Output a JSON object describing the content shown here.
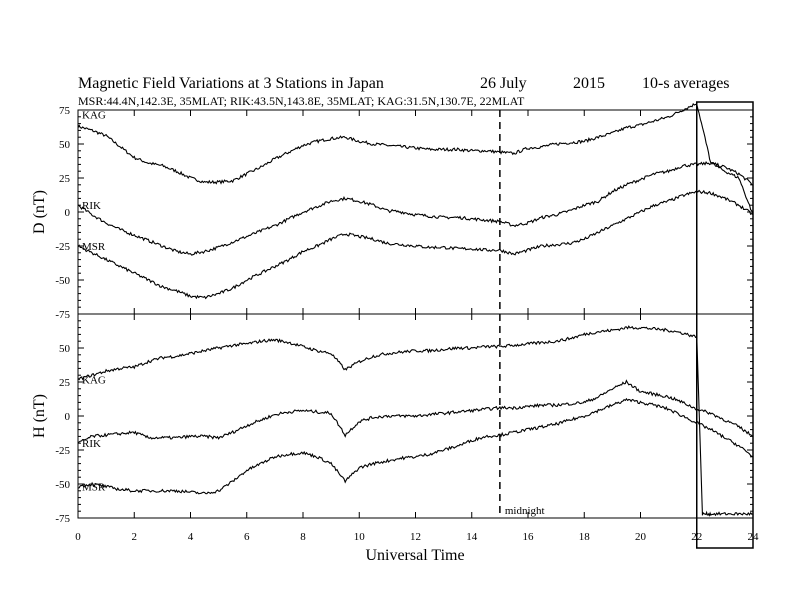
{
  "chart_data": {
    "type": "line",
    "title": "Magnetic Field Variations at 3 Stations in Japan",
    "date": "26 July",
    "year": "2015",
    "averaging": "10-s averages",
    "subtitle": "MSR:44.4N,142.3E, 35MLAT;  RIK:43.5N,143.8E, 35MLAT;  KAG:31.5N,130.7E, 22MLAT",
    "xlabel": "Universal Time",
    "xlim": [
      0,
      24
    ],
    "x_ticks": [
      "0",
      "2",
      "4",
      "6",
      "8",
      "10",
      "12",
      "14",
      "16",
      "18",
      "20",
      "22",
      "24"
    ],
    "annotation": {
      "text": "midnight",
      "x": 15
    },
    "highlight_box": {
      "x_start": 22,
      "x_end": 24
    },
    "panels": [
      {
        "ylabel": "D (nT)",
        "ylim": [
          -75,
          75
        ],
        "y_ticks": [
          "75",
          "50",
          "25",
          "0",
          "-25",
          "-50",
          "-75"
        ],
        "series": [
          {
            "name": "KAG",
            "x": [
              0,
              0.5,
              1,
              1.5,
              2,
              2.5,
              3,
              3.5,
              4,
              4.5,
              5,
              5.5,
              6,
              6.5,
              7,
              7.5,
              8,
              8.5,
              9,
              9.5,
              10,
              10.5,
              11,
              11.5,
              12,
              12.5,
              13,
              13.5,
              14,
              14.5,
              15,
              15.5,
              16,
              16.5,
              17,
              17.5,
              18,
              18.5,
              19,
              19.5,
              20,
              20.5,
              21,
              21.5,
              22,
              22.5,
              23,
              23.5,
              24
            ],
            "values": [
              63,
              60,
              56,
              48,
              40,
              36,
              34,
              30,
              25,
              22,
              22,
              23,
              28,
              33,
              39,
              44,
              49,
              52,
              54,
              55,
              52,
              50,
              49,
              48,
              47,
              46,
              46,
              46,
              45,
              45,
              44,
              43,
              47,
              48,
              50,
              51,
              52,
              55,
              58,
              62,
              64,
              67,
              70,
              75,
              80,
              36,
              33,
              28,
              20
            ]
          },
          {
            "name": "RIK",
            "x": [
              0,
              0.5,
              1,
              1.5,
              2,
              2.5,
              3,
              3.5,
              4,
              4.5,
              5,
              5.5,
              6,
              6.5,
              7,
              7.5,
              8,
              8.5,
              9,
              9.5,
              10,
              10.5,
              11,
              11.5,
              12,
              12.5,
              13,
              13.5,
              14,
              14.5,
              15,
              15.5,
              16,
              16.5,
              17,
              17.5,
              18,
              18.5,
              19,
              19.5,
              20,
              20.5,
              21,
              21.5,
              22,
              22.5,
              23,
              23.5,
              24
            ],
            "values": [
              5,
              -2,
              -8,
              -13,
              -17,
              -21,
              -25,
              -29,
              -31,
              -29,
              -26,
              -22,
              -18,
              -14,
              -10,
              -5,
              0,
              4,
              8,
              10,
              8,
              5,
              1,
              0,
              -2,
              -3,
              -4,
              -4,
              -5,
              -6,
              -7,
              -10,
              -8,
              -4,
              -2,
              1,
              5,
              8,
              15,
              20,
              24,
              28,
              30,
              34,
              35,
              36,
              30,
              25,
              -2
            ]
          },
          {
            "name": "MSR",
            "x": [
              0,
              0.5,
              1,
              1.5,
              2,
              2.5,
              3,
              3.5,
              4,
              4.5,
              5,
              5.5,
              6,
              6.5,
              7,
              7.5,
              8,
              8.5,
              9,
              9.5,
              10,
              10.5,
              11,
              11.5,
              12,
              12.5,
              13,
              13.5,
              14,
              14.5,
              15,
              15.5,
              16,
              16.5,
              17,
              17.5,
              18,
              18.5,
              19,
              19.5,
              20,
              20.5,
              21,
              21.5,
              22,
              22.5,
              23,
              23.5,
              24
            ],
            "values": [
              -25,
              -30,
              -35,
              -40,
              -45,
              -50,
              -55,
              -58,
              -62,
              -63,
              -60,
              -56,
              -50,
              -45,
              -40,
              -35,
              -29,
              -25,
              -20,
              -16,
              -18,
              -20,
              -23,
              -24,
              -25,
              -26,
              -26,
              -27,
              -27,
              -28,
              -28,
              -31,
              -28,
              -25,
              -24,
              -23,
              -20,
              -15,
              -10,
              -5,
              0,
              5,
              8,
              12,
              15,
              14,
              10,
              5,
              -2
            ]
          }
        ]
      },
      {
        "ylabel": "H (nT)",
        "ylim": [
          -75,
          75
        ],
        "y_ticks": [
          "75",
          "50",
          "25",
          "0",
          "-25",
          "-50",
          "-75"
        ],
        "series": [
          {
            "name": "KAG",
            "x": [
              0,
              0.5,
              1,
              1.5,
              2,
              2.5,
              3,
              3.5,
              4,
              4.5,
              5,
              5.5,
              6,
              6.5,
              7,
              7.5,
              8,
              8.5,
              9,
              9.5,
              10,
              10.5,
              11,
              11.5,
              12,
              12.5,
              13,
              13.5,
              14,
              14.5,
              15,
              15.5,
              16,
              16.5,
              17,
              17.5,
              18,
              18.5,
              19,
              19.5,
              20,
              20.5,
              21,
              21.5,
              22,
              22.2,
              22.5,
              23,
              23.5,
              24
            ],
            "values": [
              27,
              30,
              33,
              35,
              36,
              40,
              43,
              44,
              46,
              48,
              50,
              52,
              53,
              55,
              56,
              54,
              51,
              48,
              46,
              34,
              40,
              44,
              46,
              47,
              48,
              48,
              49,
              50,
              50,
              51,
              51,
              52,
              53,
              54,
              55,
              57,
              60,
              62,
              63,
              65,
              65,
              64,
              63,
              61,
              58,
              -72,
              -72,
              -72,
              -72,
              -72
            ]
          },
          {
            "name": "RIK",
            "x": [
              0,
              0.5,
              1,
              1.5,
              2,
              2.5,
              3,
              3.5,
              4,
              4.5,
              5,
              5.5,
              6,
              6.5,
              7,
              7.5,
              8,
              8.5,
              9,
              9.5,
              10,
              10.5,
              11,
              11.5,
              12,
              12.5,
              13,
              13.5,
              14,
              14.5,
              15,
              15.5,
              16,
              16.5,
              17,
              17.5,
              18,
              18.5,
              19,
              19.5,
              20,
              20.5,
              21,
              21.5,
              22,
              22.5,
              23,
              23.5,
              24
            ],
            "values": [
              -20,
              -15,
              -14,
              -13,
              -12,
              -16,
              -16,
              -16,
              -15,
              -15,
              -16,
              -12,
              -7,
              -3,
              1,
              3,
              4,
              3,
              2,
              -14,
              -4,
              -1,
              0,
              0,
              0,
              1,
              2,
              3,
              4,
              5,
              6,
              6,
              7,
              8,
              8,
              9,
              10,
              14,
              20,
              25,
              18,
              16,
              14,
              10,
              5,
              2,
              -3,
              -8,
              -15
            ]
          },
          {
            "name": "MSR",
            "x": [
              0,
              0.5,
              1,
              1.5,
              2,
              2.5,
              3,
              3.5,
              4,
              4.5,
              5,
              5.5,
              6,
              6.5,
              7,
              7.5,
              8,
              8.5,
              9,
              9.5,
              10,
              10.5,
              11,
              11.5,
              12,
              12.5,
              13,
              13.5,
              14,
              14.5,
              15,
              15.5,
              16,
              16.5,
              17,
              17.5,
              18,
              18.5,
              19,
              19.5,
              20,
              20.5,
              21,
              21.5,
              22,
              22.5,
              23,
              23.5,
              24
            ],
            "values": [
              -52,
              -50,
              -52,
              -54,
              -55,
              -55,
              -55,
              -55,
              -56,
              -57,
              -55,
              -48,
              -40,
              -35,
              -30,
              -28,
              -27,
              -30,
              -35,
              -48,
              -38,
              -35,
              -33,
              -31,
              -30,
              -28,
              -25,
              -22,
              -18,
              -15,
              -14,
              -12,
              -10,
              -8,
              -6,
              -3,
              0,
              4,
              8,
              12,
              10,
              8,
              5,
              0,
              -5,
              -10,
              -16,
              -22,
              -30
            ]
          }
        ]
      }
    ]
  }
}
